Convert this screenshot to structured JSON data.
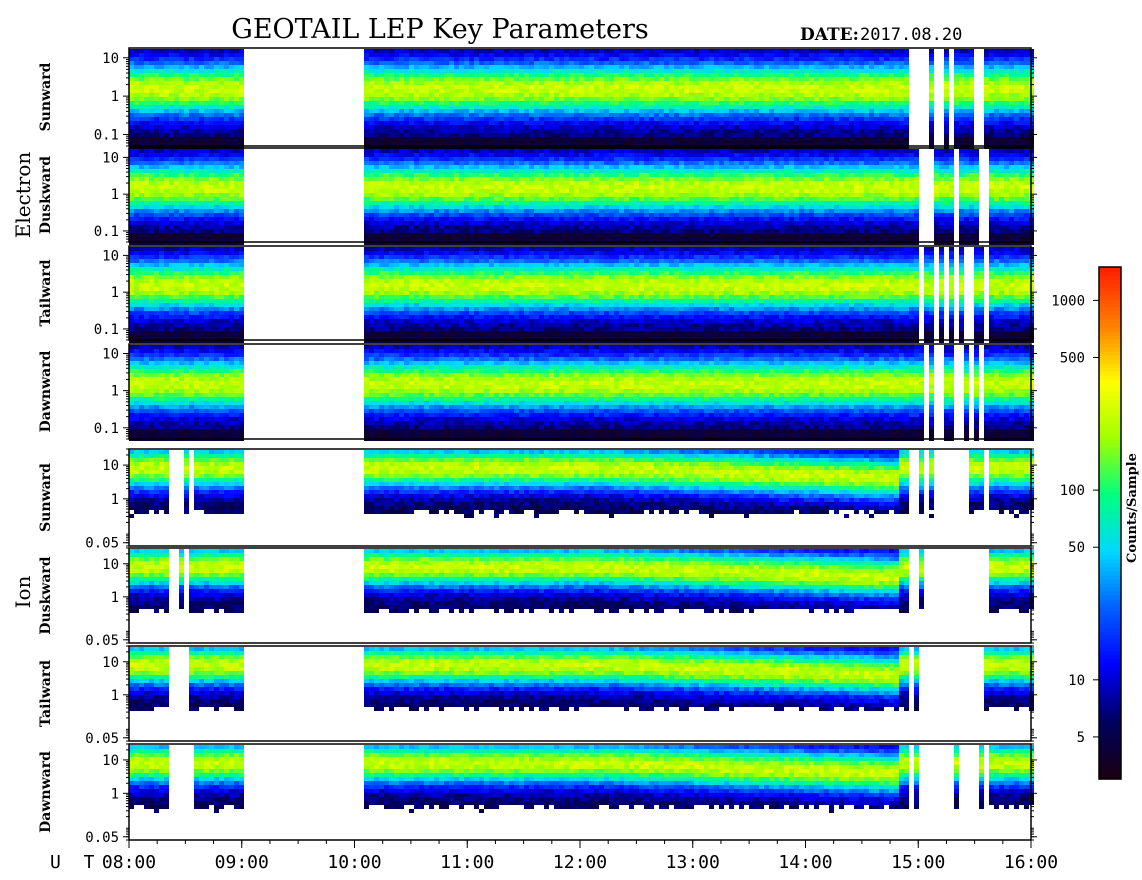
{
  "header": {
    "title": "GEOTAIL LEP Key Parameters",
    "date_label": "DATE:",
    "date_value": "2017.08.20"
  },
  "chart_data": {
    "type": "heatmap",
    "x_label": "U T",
    "x_ticks": [
      "08:00",
      "09:00",
      "10:00",
      "11:00",
      "12:00",
      "13:00",
      "14:00",
      "15:00",
      "16:00"
    ],
    "x_range_hours": [
      8,
      16
    ],
    "data_gap_hours": [
      9.0,
      10.05
    ],
    "log_y": true,
    "groups": [
      {
        "name": "Electron",
        "ylim": [
          0.05,
          18
        ],
        "y_ticks": [
          {
            "value": 10,
            "label": "10"
          },
          {
            "value": 1,
            "label": "1"
          },
          {
            "value": 0.1,
            "label": "0.1"
          }
        ],
        "panels": [
          "Sunward",
          "Duskward",
          "Tailward",
          "Dawnward"
        ]
      },
      {
        "name": "Ion",
        "ylim": [
          0.04,
          30
        ],
        "y_ticks": [
          {
            "value": 10,
            "label": "10"
          },
          {
            "value": 1,
            "label": "1"
          },
          {
            "value": 0.05,
            "label": "0.05"
          }
        ],
        "panels": [
          "Sunward",
          "Duskward",
          "Tailward",
          "Dawnward"
        ]
      }
    ],
    "colorbar": {
      "label": "Counts/Sample",
      "log": true,
      "range": [
        3,
        1500
      ],
      "ticks": [
        {
          "value": 1000,
          "label": "1000"
        },
        {
          "value": 500,
          "label": "500"
        },
        {
          "value": 100,
          "label": "100"
        },
        {
          "value": 50,
          "label": "50"
        },
        {
          "value": 10,
          "label": "10"
        },
        {
          "value": 5,
          "label": "5"
        }
      ],
      "colors": [
        "#1a0010",
        "#000060",
        "#0000ff",
        "#0060ff",
        "#00d8ff",
        "#00ff80",
        "#a0ff00",
        "#ffff00",
        "#ff8000",
        "#ff2000"
      ]
    }
  }
}
